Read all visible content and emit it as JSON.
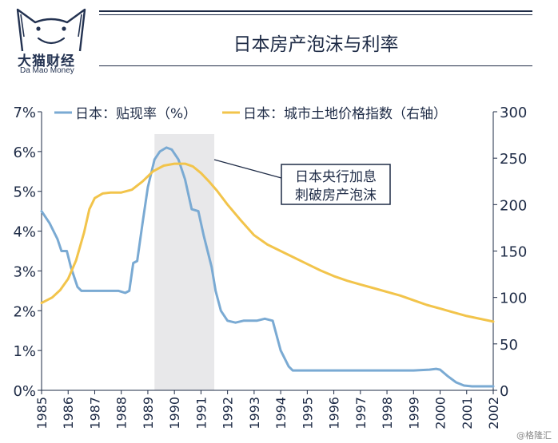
{
  "brand": {
    "name_cn": "大猫财经",
    "name_en": "Da Mao Money"
  },
  "watermark": "@格隆汇",
  "chart_data": {
    "type": "line",
    "title": "日本房产泡沫与利率",
    "x_ticks": [
      "1985",
      "1986",
      "1987",
      "1988",
      "1989",
      "1990",
      "1991",
      "1992",
      "1993",
      "1994",
      "1995",
      "1996",
      "1997",
      "1998",
      "1999",
      "2000",
      "2001",
      "2002"
    ],
    "xlim": [
      1985,
      2002
    ],
    "left_axis": {
      "ylim": [
        0,
        7
      ],
      "ticks": [
        "0%",
        "1%",
        "2%",
        "3%",
        "4%",
        "5%",
        "6%",
        "7%"
      ]
    },
    "right_axis": {
      "ylim": [
        0,
        300
      ],
      "ticks": [
        "0",
        "50",
        "100",
        "150",
        "200",
        "250",
        "300"
      ]
    },
    "shaded_region": [
      1989.25,
      1991.5
    ],
    "annotation": {
      "lines": [
        "日本央行加息",
        "刺破房产泡沫"
      ]
    },
    "legend_placement": "top",
    "series": [
      {
        "name": "日本：贴现率（%）",
        "axis": "left",
        "color": "#7aaad3",
        "x": [
          1985.0,
          1985.3,
          1985.6,
          1985.75,
          1985.95,
          1986.1,
          1986.35,
          1986.5,
          1986.75,
          1987.0,
          1987.3,
          1987.6,
          1987.9,
          1988.15,
          1988.3,
          1988.45,
          1988.6,
          1988.8,
          1989.0,
          1989.25,
          1989.45,
          1989.7,
          1989.9,
          1990.15,
          1990.4,
          1990.65,
          1990.9,
          1991.1,
          1991.25,
          1991.4,
          1991.55,
          1991.75,
          1992.0,
          1992.3,
          1992.6,
          1992.85,
          1993.1,
          1993.4,
          1993.7,
          1994.0,
          1994.3,
          1994.45,
          1994.6,
          1994.8,
          1995.0,
          1995.3,
          1995.6,
          1996.0,
          1997.0,
          1998.0,
          1999.0,
          1999.6,
          1999.85,
          2000.0,
          2000.3,
          2000.6,
          2000.9,
          2001.2,
          2001.5,
          2002.0
        ],
        "y": [
          4.5,
          4.2,
          3.8,
          3.5,
          3.5,
          3.1,
          2.6,
          2.5,
          2.5,
          2.5,
          2.5,
          2.5,
          2.5,
          2.45,
          2.5,
          3.2,
          3.25,
          4.2,
          5.1,
          5.8,
          6.0,
          6.1,
          6.05,
          5.8,
          5.3,
          4.55,
          4.5,
          3.9,
          3.5,
          3.1,
          2.5,
          2.0,
          1.75,
          1.7,
          1.75,
          1.75,
          1.75,
          1.8,
          1.75,
          1.0,
          0.6,
          0.5,
          0.5,
          0.5,
          0.5,
          0.5,
          0.5,
          0.5,
          0.5,
          0.5,
          0.5,
          0.52,
          0.54,
          0.52,
          0.35,
          0.2,
          0.12,
          0.1,
          0.1,
          0.1
        ]
      },
      {
        "name": "日本：城市土地价格指数（右轴）",
        "axis": "right",
        "color": "#f2c44b",
        "x": [
          1985.0,
          1985.4,
          1985.7,
          1986.0,
          1986.3,
          1986.6,
          1986.8,
          1987.0,
          1987.3,
          1987.6,
          1988.0,
          1988.4,
          1988.8,
          1989.2,
          1989.6,
          1990.0,
          1990.4,
          1990.7,
          1991.0,
          1991.3,
          1991.6,
          1992.0,
          1992.5,
          1993.0,
          1993.5,
          1994.0,
          1994.5,
          1995.0,
          1995.5,
          1996.0,
          1996.5,
          1997.0,
          1997.5,
          1998.0,
          1998.5,
          1999.0,
          1999.5,
          2000.0,
          2000.5,
          2001.0,
          2001.5,
          2002.0
        ],
        "y": [
          94,
          100,
          108,
          120,
          140,
          170,
          195,
          207,
          212,
          213,
          213,
          216,
          225,
          236,
          242,
          244,
          244,
          241,
          234,
          225,
          215,
          200,
          183,
          167,
          157,
          150,
          143,
          136,
          129,
          123,
          118,
          114,
          110,
          106,
          102,
          97,
          92,
          88,
          84,
          80,
          77,
          74
        ]
      }
    ]
  }
}
